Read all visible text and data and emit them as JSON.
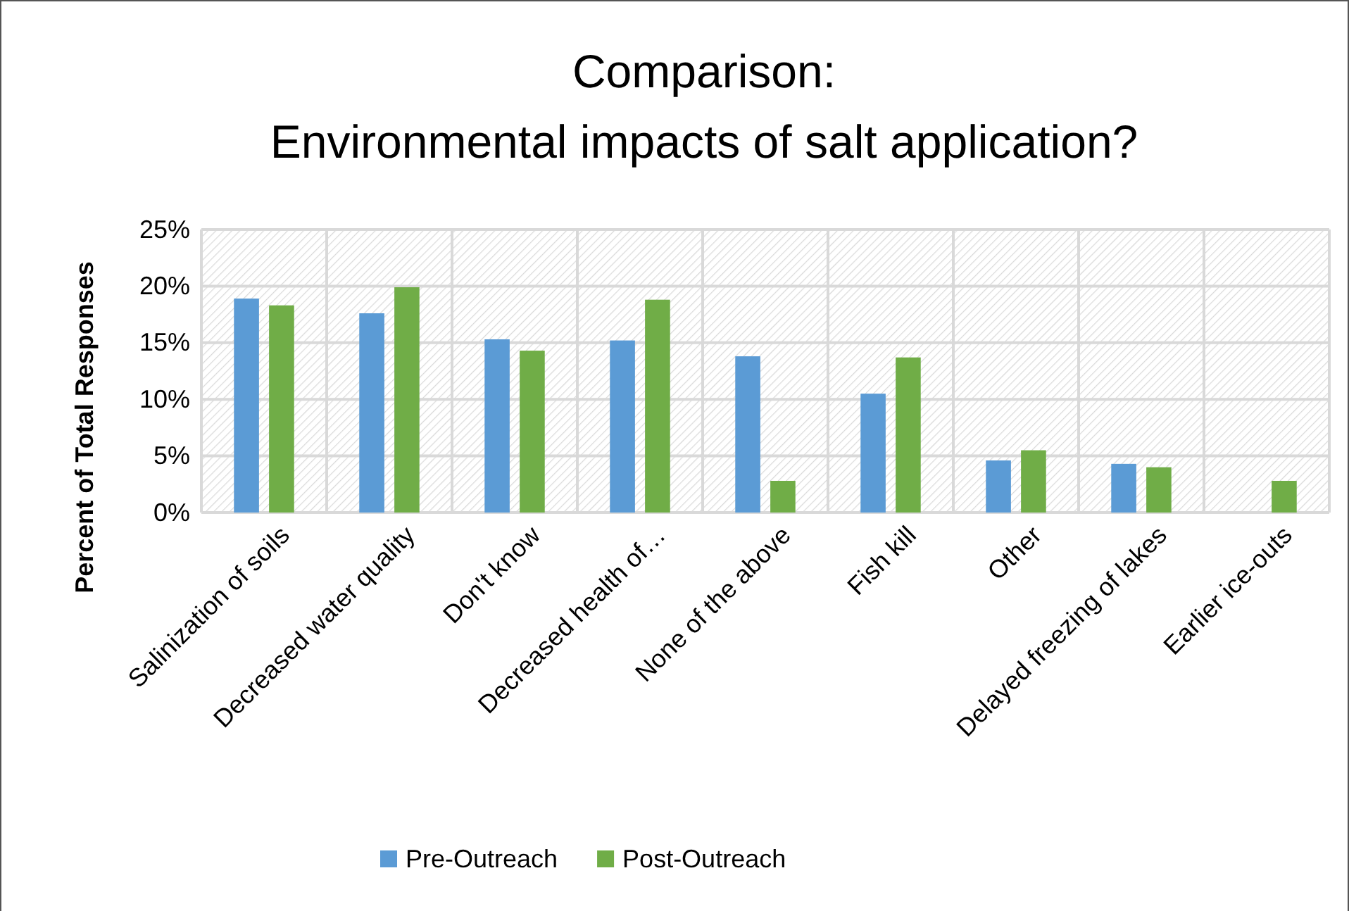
{
  "chart_data": {
    "type": "bar",
    "title": "Comparison:\nEnvironmental impacts of salt application?",
    "ylabel": "Percent of Total Responses",
    "categories": [
      "Salinization of soils",
      "Decreased water quality",
      "Don't know",
      "Decreased health of…",
      "None of the above",
      "Fish kill",
      "Other",
      "Delayed freezing of lakes",
      "Earlier ice-outs"
    ],
    "series": [
      {
        "name": "Pre-Outreach",
        "color": "#5b9bd5",
        "values": [
          18.9,
          17.6,
          15.3,
          15.2,
          13.8,
          10.5,
          4.6,
          4.3,
          null
        ]
      },
      {
        "name": "Post-Outreach",
        "color": "#70ad47",
        "values": [
          18.3,
          19.9,
          14.3,
          18.8,
          2.8,
          13.7,
          5.5,
          4.0,
          2.8
        ]
      }
    ],
    "ylim": [
      0,
      25
    ],
    "yticks": [
      {
        "value": 0,
        "label": "0%"
      },
      {
        "value": 5,
        "label": "5%"
      },
      {
        "value": 10,
        "label": "10%"
      },
      {
        "value": 15,
        "label": "15%"
      },
      {
        "value": 20,
        "label": "20%"
      },
      {
        "value": 25,
        "label": "25%"
      }
    ],
    "grid": true,
    "legend": "bottom"
  }
}
